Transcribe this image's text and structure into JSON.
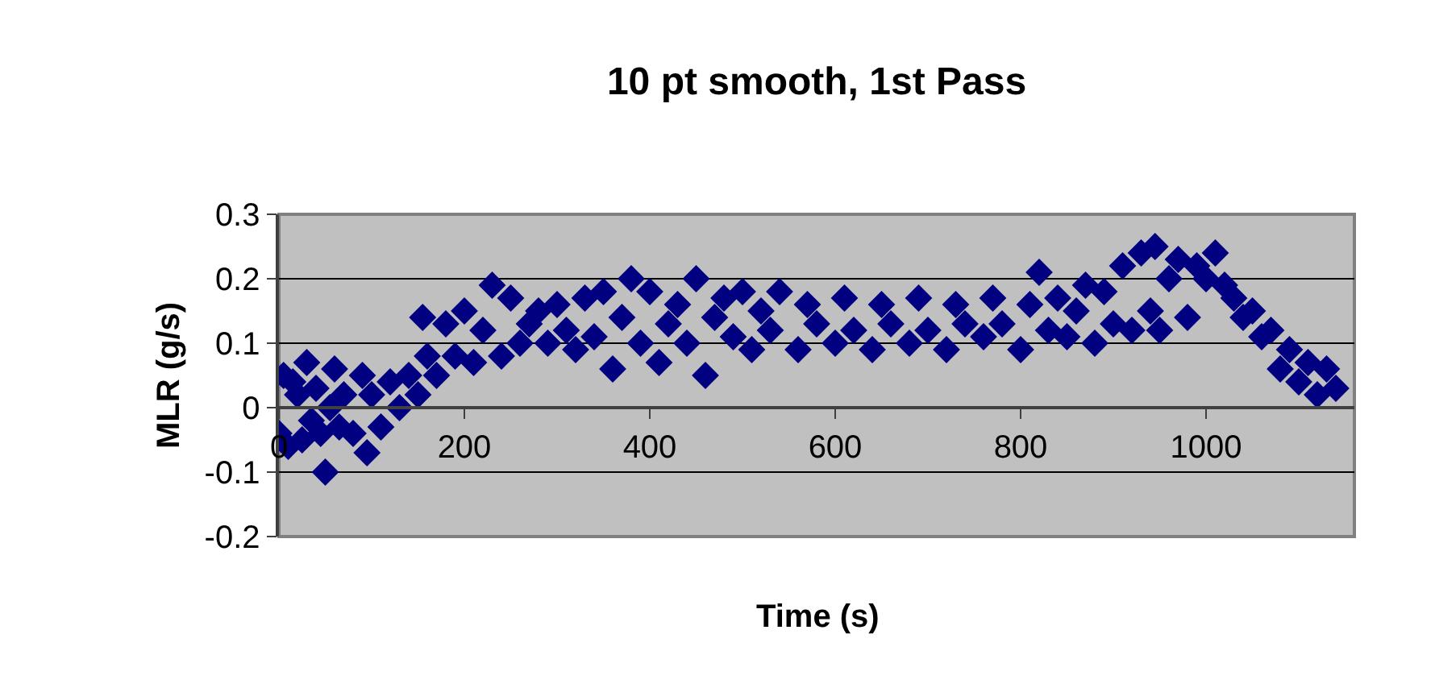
{
  "chart_data": {
    "type": "scatter",
    "title": "10 pt smooth, 1st Pass",
    "xlabel": "Time (s)",
    "ylabel": "MLR (g/s)",
    "xlim": [
      0,
      1160
    ],
    "xticks": [
      0,
      200,
      400,
      600,
      800,
      1000
    ],
    "ylim": [
      -0.2,
      0.3
    ],
    "yticks": [
      -0.2,
      -0.1,
      0,
      0.1,
      0.2,
      0.3
    ],
    "grid": "y",
    "marker": "diamond",
    "series": [
      {
        "color": "#000080",
        "x": [
          0,
          5,
          10,
          15,
          20,
          25,
          30,
          35,
          40,
          45,
          50,
          55,
          60,
          65,
          70,
          80,
          90,
          95,
          100,
          110,
          120,
          130,
          140,
          150,
          155,
          160,
          170,
          180,
          190,
          200,
          210,
          220,
          230,
          240,
          250,
          260,
          270,
          280,
          290,
          300,
          310,
          320,
          330,
          340,
          350,
          360,
          370,
          380,
          390,
          400,
          410,
          420,
          430,
          440,
          450,
          460,
          470,
          480,
          490,
          500,
          510,
          520,
          530,
          540,
          560,
          570,
          580,
          600,
          610,
          620,
          640,
          650,
          660,
          680,
          690,
          700,
          720,
          730,
          740,
          760,
          770,
          780,
          800,
          810,
          820,
          830,
          840,
          850,
          860,
          870,
          880,
          890,
          900,
          910,
          920,
          930,
          940,
          945,
          950,
          960,
          970,
          980,
          990,
          1000,
          1010,
          1020,
          1030,
          1040,
          1050,
          1060,
          1070,
          1080,
          1090,
          1100,
          1110,
          1120,
          1130,
          1140
        ],
        "values": [
          -0.04,
          0.05,
          -0.06,
          0.04,
          0.02,
          -0.05,
          0.07,
          -0.02,
          0.03,
          -0.04,
          -0.1,
          0.0,
          0.06,
          -0.03,
          0.02,
          -0.04,
          0.05,
          -0.07,
          0.02,
          -0.03,
          0.04,
          0.0,
          0.05,
          0.02,
          0.14,
          0.08,
          0.05,
          0.13,
          0.08,
          0.15,
          0.07,
          0.12,
          0.19,
          0.08,
          0.17,
          0.1,
          0.13,
          0.15,
          0.1,
          0.16,
          0.12,
          0.09,
          0.17,
          0.11,
          0.18,
          0.06,
          0.14,
          0.2,
          0.1,
          0.18,
          0.07,
          0.13,
          0.16,
          0.1,
          0.2,
          0.05,
          0.14,
          0.17,
          0.11,
          0.18,
          0.09,
          0.15,
          0.12,
          0.18,
          0.09,
          0.16,
          0.13,
          0.1,
          0.17,
          0.12,
          0.09,
          0.16,
          0.13,
          0.1,
          0.17,
          0.12,
          0.09,
          0.16,
          0.13,
          0.11,
          0.17,
          0.13,
          0.09,
          0.16,
          0.21,
          0.12,
          0.17,
          0.11,
          0.15,
          0.19,
          0.1,
          0.18,
          0.13,
          0.22,
          0.12,
          0.24,
          0.15,
          0.25,
          0.12,
          0.2,
          0.23,
          0.14,
          0.22,
          0.2,
          0.24,
          0.19,
          0.17,
          0.14,
          0.15,
          0.11,
          0.12,
          0.06,
          0.09,
          0.04,
          0.07,
          0.02,
          0.06,
          0.03
        ]
      }
    ]
  }
}
